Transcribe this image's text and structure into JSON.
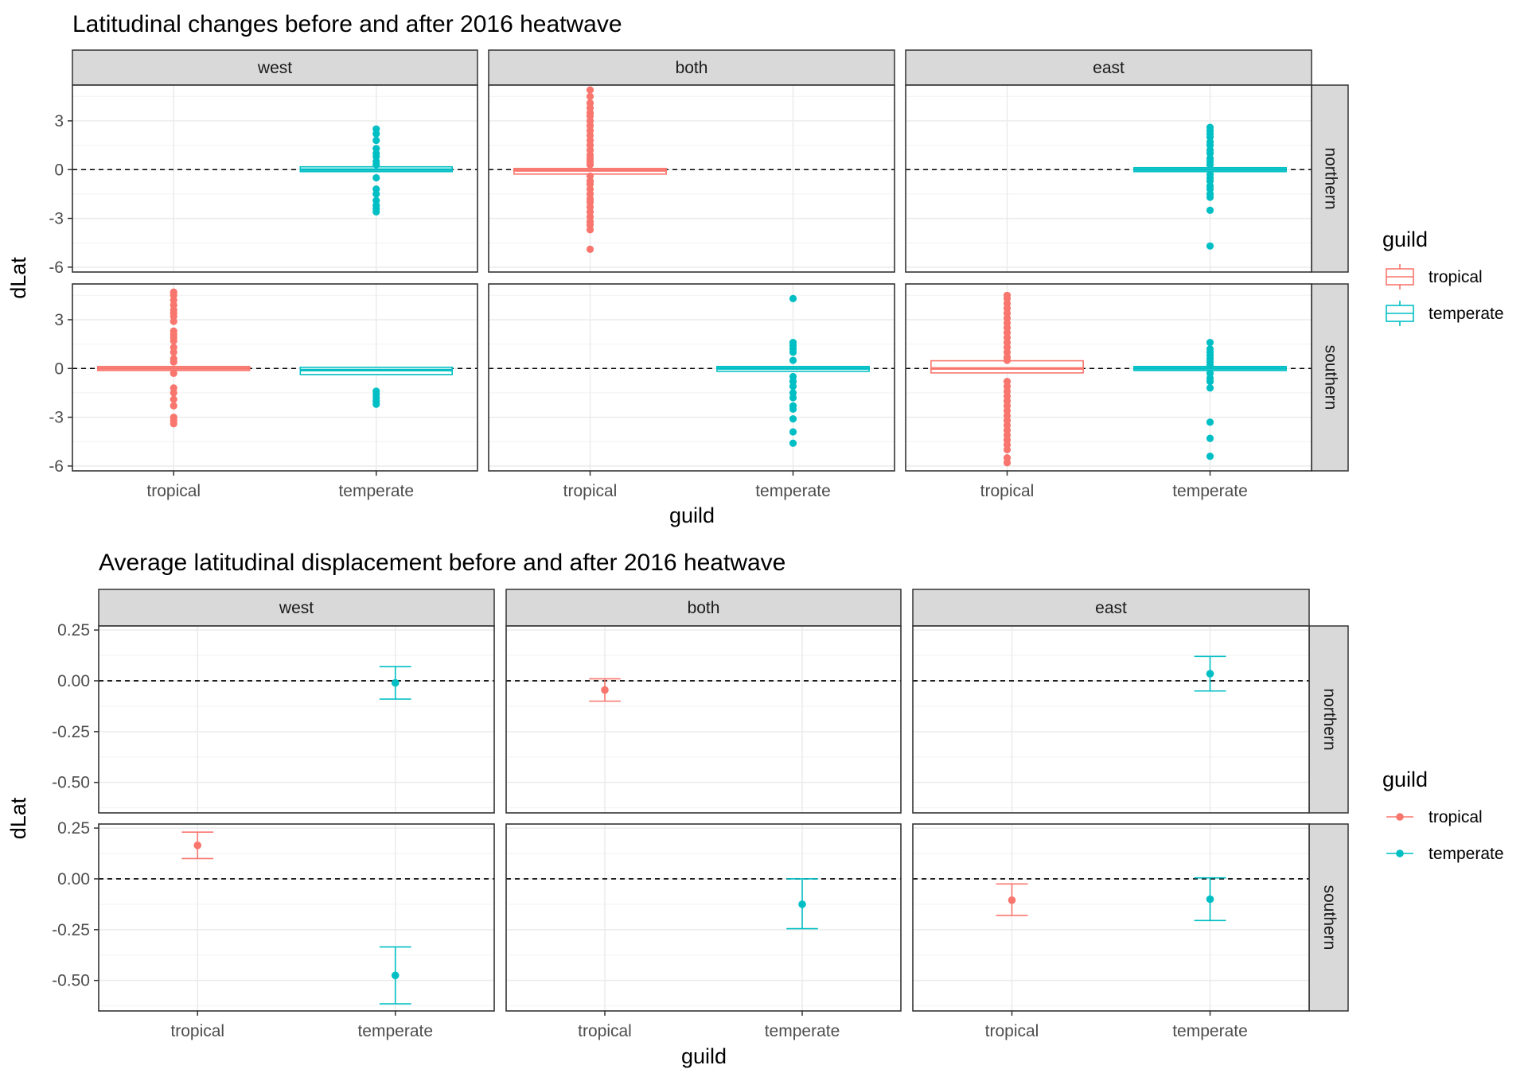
{
  "colors": {
    "tropical": "#F8766D",
    "temperate": "#00BFC4"
  },
  "chart_data": [
    {
      "type": "box",
      "title": "Latitudinal changes before and after 2016 heatwave",
      "xlabel": "guild",
      "ylabel": "dLat",
      "columns": [
        "west",
        "both",
        "east"
      ],
      "rows": [
        "northern",
        "southern"
      ],
      "categories": [
        "tropical",
        "temperate"
      ],
      "ylim": [
        -6.3,
        5.2
      ],
      "yticks": [
        3,
        0,
        -3,
        -6
      ],
      "ytick_labels": [
        "3",
        "0",
        "-3",
        "-6"
      ],
      "reference_line": 0,
      "grid": true,
      "legend": {
        "title": "guild",
        "entries": [
          "tropical",
          "temperate"
        ],
        "position": "right"
      },
      "panels": [
        {
          "row": "northern",
          "col": "west",
          "series": [
            {
              "name": "temperate",
              "box": {
                "q1": -0.05,
                "median": 0,
                "q3": 0.1
              },
              "points": [
                2.5,
                2.2,
                1.8,
                1.3,
                1.0,
                0.8,
                0.5,
                0.3,
                -0.5,
                -1.2,
                -1.5,
                -1.9,
                -2.2,
                -2.4,
                -2.6
              ]
            }
          ]
        },
        {
          "row": "northern",
          "col": "both",
          "series": [
            {
              "name": "tropical",
              "box": {
                "q1": -0.2,
                "median": -0.05,
                "q3": 0.0
              },
              "points": [
                4.9,
                4.5,
                4.1,
                3.8,
                3.5,
                3.3,
                3.0,
                2.7,
                2.4,
                2.1,
                1.8,
                1.5,
                1.2,
                0.9,
                0.7,
                0.5,
                0.3,
                -0.4,
                -0.7,
                -0.9,
                -1.2,
                -1.5,
                -1.8,
                -2.0,
                -2.3,
                -2.6,
                -2.9,
                -3.2,
                -3.4,
                -3.7,
                -4.9
              ]
            }
          ]
        },
        {
          "row": "northern",
          "col": "east",
          "series": [
            {
              "name": "temperate",
              "box": {
                "q1": -0.05,
                "median": 0,
                "q3": 0.05
              },
              "points": [
                2.6,
                2.4,
                2.2,
                2.0,
                1.7,
                1.5,
                1.2,
                1.0,
                0.7,
                0.5,
                0.3,
                -0.3,
                -0.5,
                -0.7,
                -1.0,
                -1.2,
                -1.5,
                -1.7,
                -2.5,
                -4.7
              ]
            }
          ]
        },
        {
          "row": "southern",
          "col": "west",
          "series": [
            {
              "name": "tropical",
              "box": {
                "q1": -0.05,
                "median": 0,
                "q3": 0.05
              },
              "points": [
                4.7,
                4.5,
                4.2,
                3.9,
                3.6,
                3.4,
                3.2,
                2.9,
                2.3,
                2.1,
                1.9,
                1.7,
                1.3,
                1.0,
                0.6,
                0.4,
                -0.3,
                -1.2,
                -1.5,
                -1.9,
                -2.3,
                -3.0,
                -3.2,
                -3.4
              ]
            },
            {
              "name": "temperate",
              "box": {
                "q1": -0.3,
                "median": -0.1,
                "q3": 0.0
              },
              "points": [
                -1.4,
                -1.6,
                -1.8,
                -2.0,
                -2.2
              ]
            }
          ]
        },
        {
          "row": "southern",
          "col": "both",
          "series": [
            {
              "name": "temperate",
              "box": {
                "q1": -0.1,
                "median": 0,
                "q3": 0.05
              },
              "points": [
                4.3,
                1.6,
                1.4,
                1.2,
                1.0,
                0.5,
                -0.5,
                -0.8,
                -1.1,
                -1.5,
                -1.8,
                -2.3,
                -2.5,
                -3.1,
                -3.9,
                -4.6
              ]
            }
          ]
        },
        {
          "row": "southern",
          "col": "east",
          "series": [
            {
              "name": "tropical",
              "box": {
                "q1": -0.2,
                "median": 0,
                "q3": 0.4
              },
              "points": [
                4.5,
                4.3,
                4.0,
                3.7,
                3.4,
                3.1,
                2.8,
                2.5,
                2.2,
                1.9,
                1.6,
                1.3,
                1.0,
                0.7,
                0.5,
                -0.8,
                -1.1,
                -1.4,
                -1.7,
                -2.0,
                -2.3,
                -2.6,
                -2.9,
                -3.2,
                -3.5,
                -3.8,
                -4.1,
                -4.4,
                -4.7,
                -5.0,
                -5.5,
                -5.8
              ]
            },
            {
              "name": "temperate",
              "box": {
                "q1": -0.05,
                "median": 0,
                "q3": 0.05
              },
              "points": [
                1.6,
                1.2,
                1.0,
                0.8,
                0.6,
                0.4,
                0.2,
                -0.3,
                -0.6,
                -0.8,
                -1.2,
                -3.3,
                -4.3,
                -5.4
              ]
            }
          ]
        }
      ]
    },
    {
      "type": "errorbar",
      "title": "Average latitudinal displacement before and after 2016 heatwave",
      "xlabel": "guild",
      "ylabel": "dLat",
      "columns": [
        "west",
        "both",
        "east"
      ],
      "rows": [
        "northern",
        "southern"
      ],
      "categories": [
        "tropical",
        "temperate"
      ],
      "ylim": [
        -0.65,
        0.27
      ],
      "yticks": [
        0.25,
        0.0,
        -0.25,
        -0.5
      ],
      "ytick_labels": [
        "0.25",
        "0.00",
        "-0.25",
        "-0.50"
      ],
      "reference_line": 0,
      "grid": true,
      "legend": {
        "title": "guild",
        "entries": [
          "tropical",
          "temperate"
        ],
        "position": "right"
      },
      "panels": [
        {
          "row": "northern",
          "col": "west",
          "series": [
            {
              "name": "temperate",
              "mean": -0.01,
              "lower": -0.09,
              "upper": 0.07
            }
          ]
        },
        {
          "row": "northern",
          "col": "both",
          "series": [
            {
              "name": "tropical",
              "mean": -0.045,
              "lower": -0.1,
              "upper": 0.01
            }
          ]
        },
        {
          "row": "northern",
          "col": "east",
          "series": [
            {
              "name": "temperate",
              "mean": 0.035,
              "lower": -0.05,
              "upper": 0.12
            }
          ]
        },
        {
          "row": "southern",
          "col": "west",
          "series": [
            {
              "name": "tropical",
              "mean": 0.165,
              "lower": 0.1,
              "upper": 0.23
            },
            {
              "name": "temperate",
              "mean": -0.475,
              "lower": -0.615,
              "upper": -0.335
            }
          ]
        },
        {
          "row": "southern",
          "col": "both",
          "series": [
            {
              "name": "temperate",
              "mean": -0.125,
              "lower": -0.245,
              "upper": 0.0
            }
          ]
        },
        {
          "row": "southern",
          "col": "east",
          "series": [
            {
              "name": "tropical",
              "mean": -0.105,
              "lower": -0.18,
              "upper": -0.025
            },
            {
              "name": "temperate",
              "mean": -0.1,
              "lower": -0.205,
              "upper": 0.005
            }
          ]
        }
      ]
    }
  ]
}
